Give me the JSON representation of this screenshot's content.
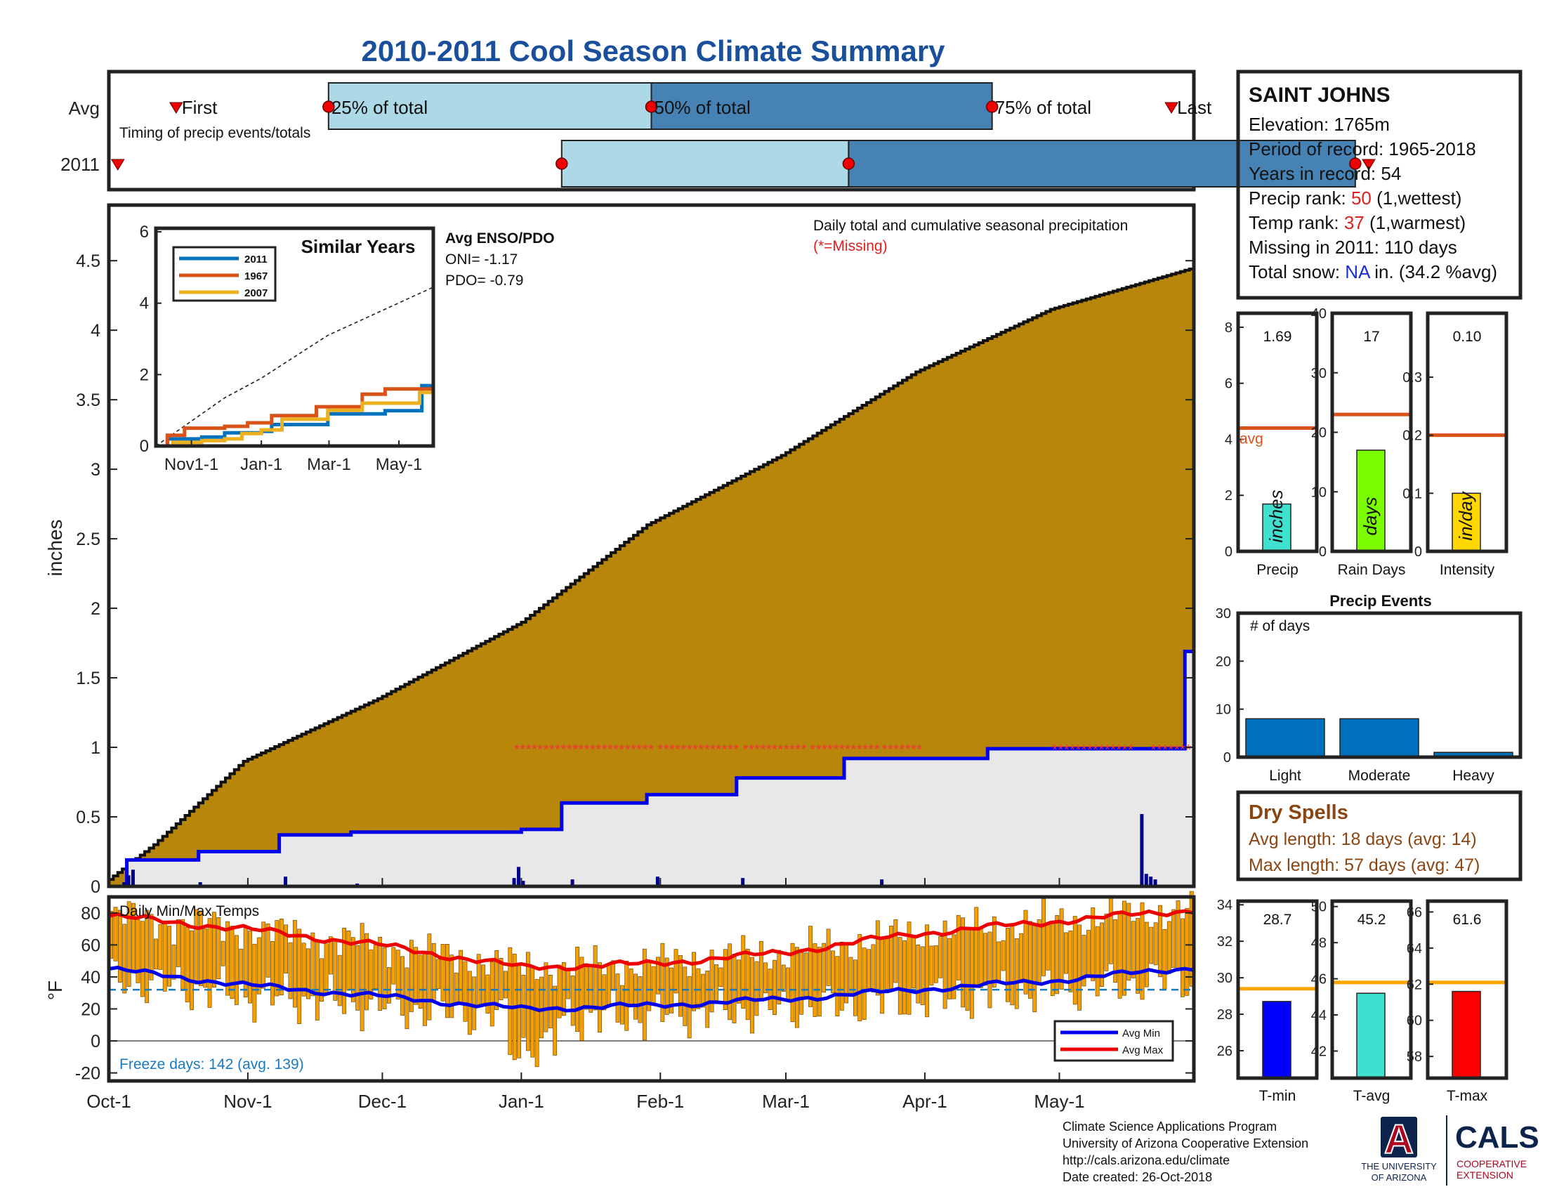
{
  "title": "2010-2011 Cool Season Climate Summary",
  "timing": {
    "row_labels": [
      "Avg",
      "2011"
    ],
    "caption": "Timing of precip events/totals",
    "avg_labels": {
      "first": "First",
      "p25": "25% of total",
      "p50": "50% of total",
      "p75": "75% of total",
      "last": "Last"
    },
    "avg_markers_day": {
      "first": 15,
      "p25": 49,
      "p50": 121,
      "p75": 197,
      "last": 237
    },
    "y2011_markers_day": {
      "first": 2,
      "p25": 101,
      "p50": 165,
      "p75": 278,
      "last": 281
    },
    "colors": {
      "light": "#add8e6",
      "dark": "#4682b4",
      "marker": "#ee0000"
    }
  },
  "info": {
    "station": "SAINT JOHNS",
    "elevation": "Elevation: 1765m",
    "period": "Period of record: 1965-2018",
    "years": "Years in record: 54",
    "precip_rank_label": "Precip rank: ",
    "precip_rank_value": "50",
    "precip_rank_note": " (1,wettest)",
    "temp_rank_label": "Temp rank: ",
    "temp_rank_value": "37",
    "temp_rank_note": " (1,warmest)",
    "missing": "Missing in 2011: 110 days",
    "snow_label": "Total snow: ",
    "snow_value": "NA",
    "snow_note": " in. (34.2 %avg)"
  },
  "main_chart": {
    "ylabel": "inches",
    "yticks": [
      "0",
      "0.5",
      "1",
      "1.5",
      "2",
      "2.5",
      "3",
      "3.5",
      "4",
      "4.5"
    ],
    "ylim": [
      0,
      4.9
    ],
    "xticks": [
      "Oct-1",
      "Nov-1",
      "Dec-1",
      "Jan-1",
      "Feb-1",
      "Mar-1",
      "Apr-1",
      "May-1"
    ],
    "xtick_days": [
      0,
      31,
      61,
      92,
      123,
      151,
      182,
      212
    ],
    "xlim_days": [
      0,
      242
    ],
    "note_line1": "Daily total and cumulative seasonal precipitation",
    "note_line2": "(*=Missing)",
    "avg_cumulative": {
      "days": [
        0,
        10,
        30,
        60,
        92,
        120,
        150,
        180,
        210,
        242
      ],
      "values": [
        0.05,
        0.3,
        0.9,
        1.35,
        1.9,
        2.6,
        3.1,
        3.7,
        4.15,
        4.45
      ]
    },
    "obs_cumulative": {
      "days": [
        0,
        4,
        20,
        38,
        54,
        92,
        101,
        120,
        140,
        164,
        196,
        240,
        242
      ],
      "values": [
        0.0,
        0.19,
        0.25,
        0.37,
        0.39,
        0.41,
        0.6,
        0.66,
        0.78,
        0.92,
        0.99,
        1.69,
        1.69
      ]
    },
    "daily_bars": {
      "days": [
        3,
        4,
        5,
        20,
        39,
        55,
        90,
        91,
        92,
        103,
        122,
        141,
        172,
        230,
        231,
        232,
        233
      ],
      "values": [
        0.03,
        0.08,
        0.12,
        0.03,
        0.07,
        0.02,
        0.06,
        0.14,
        0.04,
        0.05,
        0.07,
        0.06,
        0.05,
        0.52,
        0.09,
        0.07,
        0.05
      ]
    },
    "missing_ranges": [
      [
        91,
        104
      ],
      [
        104,
        122
      ],
      [
        123,
        141
      ],
      [
        142,
        156
      ],
      [
        157,
        172
      ],
      [
        173,
        181
      ],
      [
        211,
        229
      ],
      [
        233,
        242
      ]
    ],
    "colors": {
      "avg_fill": "#b8860b",
      "obs_fill": "#e8e8e8",
      "obs_line": "#0000ee",
      "missing": "#ee3333"
    }
  },
  "inset": {
    "title": "Similar Years",
    "yticks": [
      "0",
      "2",
      "4",
      "6"
    ],
    "xticks": [
      "Nov1-1",
      "Jan-1",
      "Mar-1",
      "May-1"
    ],
    "legend": [
      {
        "name": "2011",
        "color": "#0072bd"
      },
      {
        "name": "1967",
        "color": "#d95319"
      },
      {
        "name": "2007",
        "color": "#edb120"
      }
    ],
    "series": [
      {
        "name": "2011",
        "days": [
          0,
          10,
          40,
          60,
          92,
          101,
          150,
          200,
          225,
          232,
          242
        ],
        "values": [
          0.0,
          0.2,
          0.25,
          0.37,
          0.41,
          0.6,
          0.9,
          0.99,
          0.99,
          1.69,
          1.69
        ]
      },
      {
        "name": "1967",
        "days": [
          0,
          10,
          25,
          60,
          80,
          101,
          140,
          180,
          200,
          242
        ],
        "values": [
          0.0,
          0.3,
          0.5,
          0.55,
          0.65,
          0.85,
          1.1,
          1.45,
          1.6,
          1.65
        ]
      },
      {
        "name": "2007",
        "days": [
          0,
          15,
          40,
          60,
          75,
          92,
          110,
          150,
          180,
          230,
          242
        ],
        "values": [
          0.0,
          0.1,
          0.15,
          0.2,
          0.35,
          0.45,
          0.75,
          1.0,
          1.2,
          1.5,
          1.8
        ]
      }
    ],
    "avg_days": [
      0,
      60,
      92,
      150,
      242
    ],
    "avg_values": [
      0.0,
      1.35,
      1.9,
      3.1,
      4.45
    ],
    "enso_title": "Avg ENSO/PDO",
    "oni": "ONI= -1.17",
    "pdo": "PDO= -0.79"
  },
  "temp_chart": {
    "title": "Daily Min/Max Temps",
    "ylabel": "°F",
    "yticks": [
      "-20",
      "0",
      "20",
      "40",
      "60",
      "80"
    ],
    "ylim": [
      -25,
      90
    ],
    "freeze": "Freeze days: 142 (avg. 139)",
    "legend": {
      "min": "Avg Min",
      "max": "Avg Max"
    },
    "avg_min": {
      "days": [
        0,
        30,
        60,
        92,
        120,
        150,
        180,
        212,
        242
      ],
      "values": [
        45,
        35,
        28,
        20,
        22,
        26,
        32,
        38,
        46
      ]
    },
    "avg_max": {
      "days": [
        0,
        30,
        60,
        92,
        120,
        150,
        180,
        212,
        242
      ],
      "values": [
        78,
        70,
        60,
        46,
        48,
        55,
        67,
        75,
        82
      ]
    },
    "freeze_line": 32,
    "colors": {
      "bar": "#f5a000",
      "min": "#0000ee",
      "max": "#ee0000",
      "freeze": "#1a7abf"
    }
  },
  "small_panels": [
    {
      "label": "Precip",
      "value": "1.69",
      "unit": "inches",
      "yticks": [
        "0",
        "2",
        "4",
        "6",
        "8"
      ],
      "ylim": [
        0,
        8.5
      ],
      "bar": 1.69,
      "avg": 4.4,
      "color": "#40e0d0",
      "avg_label": "avg"
    },
    {
      "label": "Rain Days",
      "value": "17",
      "unit": "days",
      "yticks": [
        "0",
        "10",
        "20",
        "30",
        "40"
      ],
      "ylim": [
        0,
        40
      ],
      "bar": 17,
      "avg": 23,
      "color": "#7cfc00"
    },
    {
      "label": "Intensity",
      "value": "0.10",
      "unit": "in/day",
      "yticks": [
        "0",
        "0.1",
        "0.2",
        "0.3"
      ],
      "ylim": [
        0,
        0.41
      ],
      "bar": 0.1,
      "avg": 0.2,
      "color": "#ffd700"
    }
  ],
  "events": {
    "title": "Precip Events",
    "ylabel_inside": "# of days",
    "yticks": [
      "0",
      "10",
      "20",
      "30"
    ],
    "ylim": [
      0,
      30
    ],
    "categories": [
      "Light",
      "Moderate",
      "Heavy"
    ],
    "values": [
      8,
      8,
      1
    ],
    "color": "#0072bd"
  },
  "dry": {
    "title": "Dry Spells",
    "avg_line": "Avg length: 18 days (avg: 14)",
    "max_line": "Max length: 57 days (avg: 47)",
    "color": "#8b4513"
  },
  "temp_panels": [
    {
      "label": "T-min",
      "value": "28.7",
      "yticks": [
        "26",
        "28",
        "30",
        "32",
        "34"
      ],
      "ylim": [
        24.5,
        34.2
      ],
      "bar": 28.7,
      "avg": 29.4,
      "color": "#0000ff"
    },
    {
      "label": "T-avg",
      "value": "45.2",
      "yticks": [
        "42",
        "44",
        "46",
        "48",
        "50"
      ],
      "ylim": [
        40.5,
        50.3
      ],
      "bar": 45.2,
      "avg": 45.8,
      "color": "#40e0d0"
    },
    {
      "label": "T-max",
      "value": "61.6",
      "yticks": [
        "58",
        "60",
        "62",
        "64",
        "66"
      ],
      "ylim": [
        56.8,
        66.6
      ],
      "bar": 61.6,
      "avg": 62.1,
      "color": "#ff0000"
    }
  ],
  "footer": {
    "lines": [
      "Climate Science Applications Program",
      "University of Arizona Cooperative Extension",
      "http://cals.arizona.edu/climate",
      " Date created: 26-Oct-2018"
    ],
    "ua_letter": "A",
    "ua_line1": "THE UNIVERSITY",
    "ua_line2": "OF ARIZONA",
    "cals": "CALS",
    "cals_line1": "COOPERATIVE",
    "cals_line2": "EXTENSION"
  }
}
